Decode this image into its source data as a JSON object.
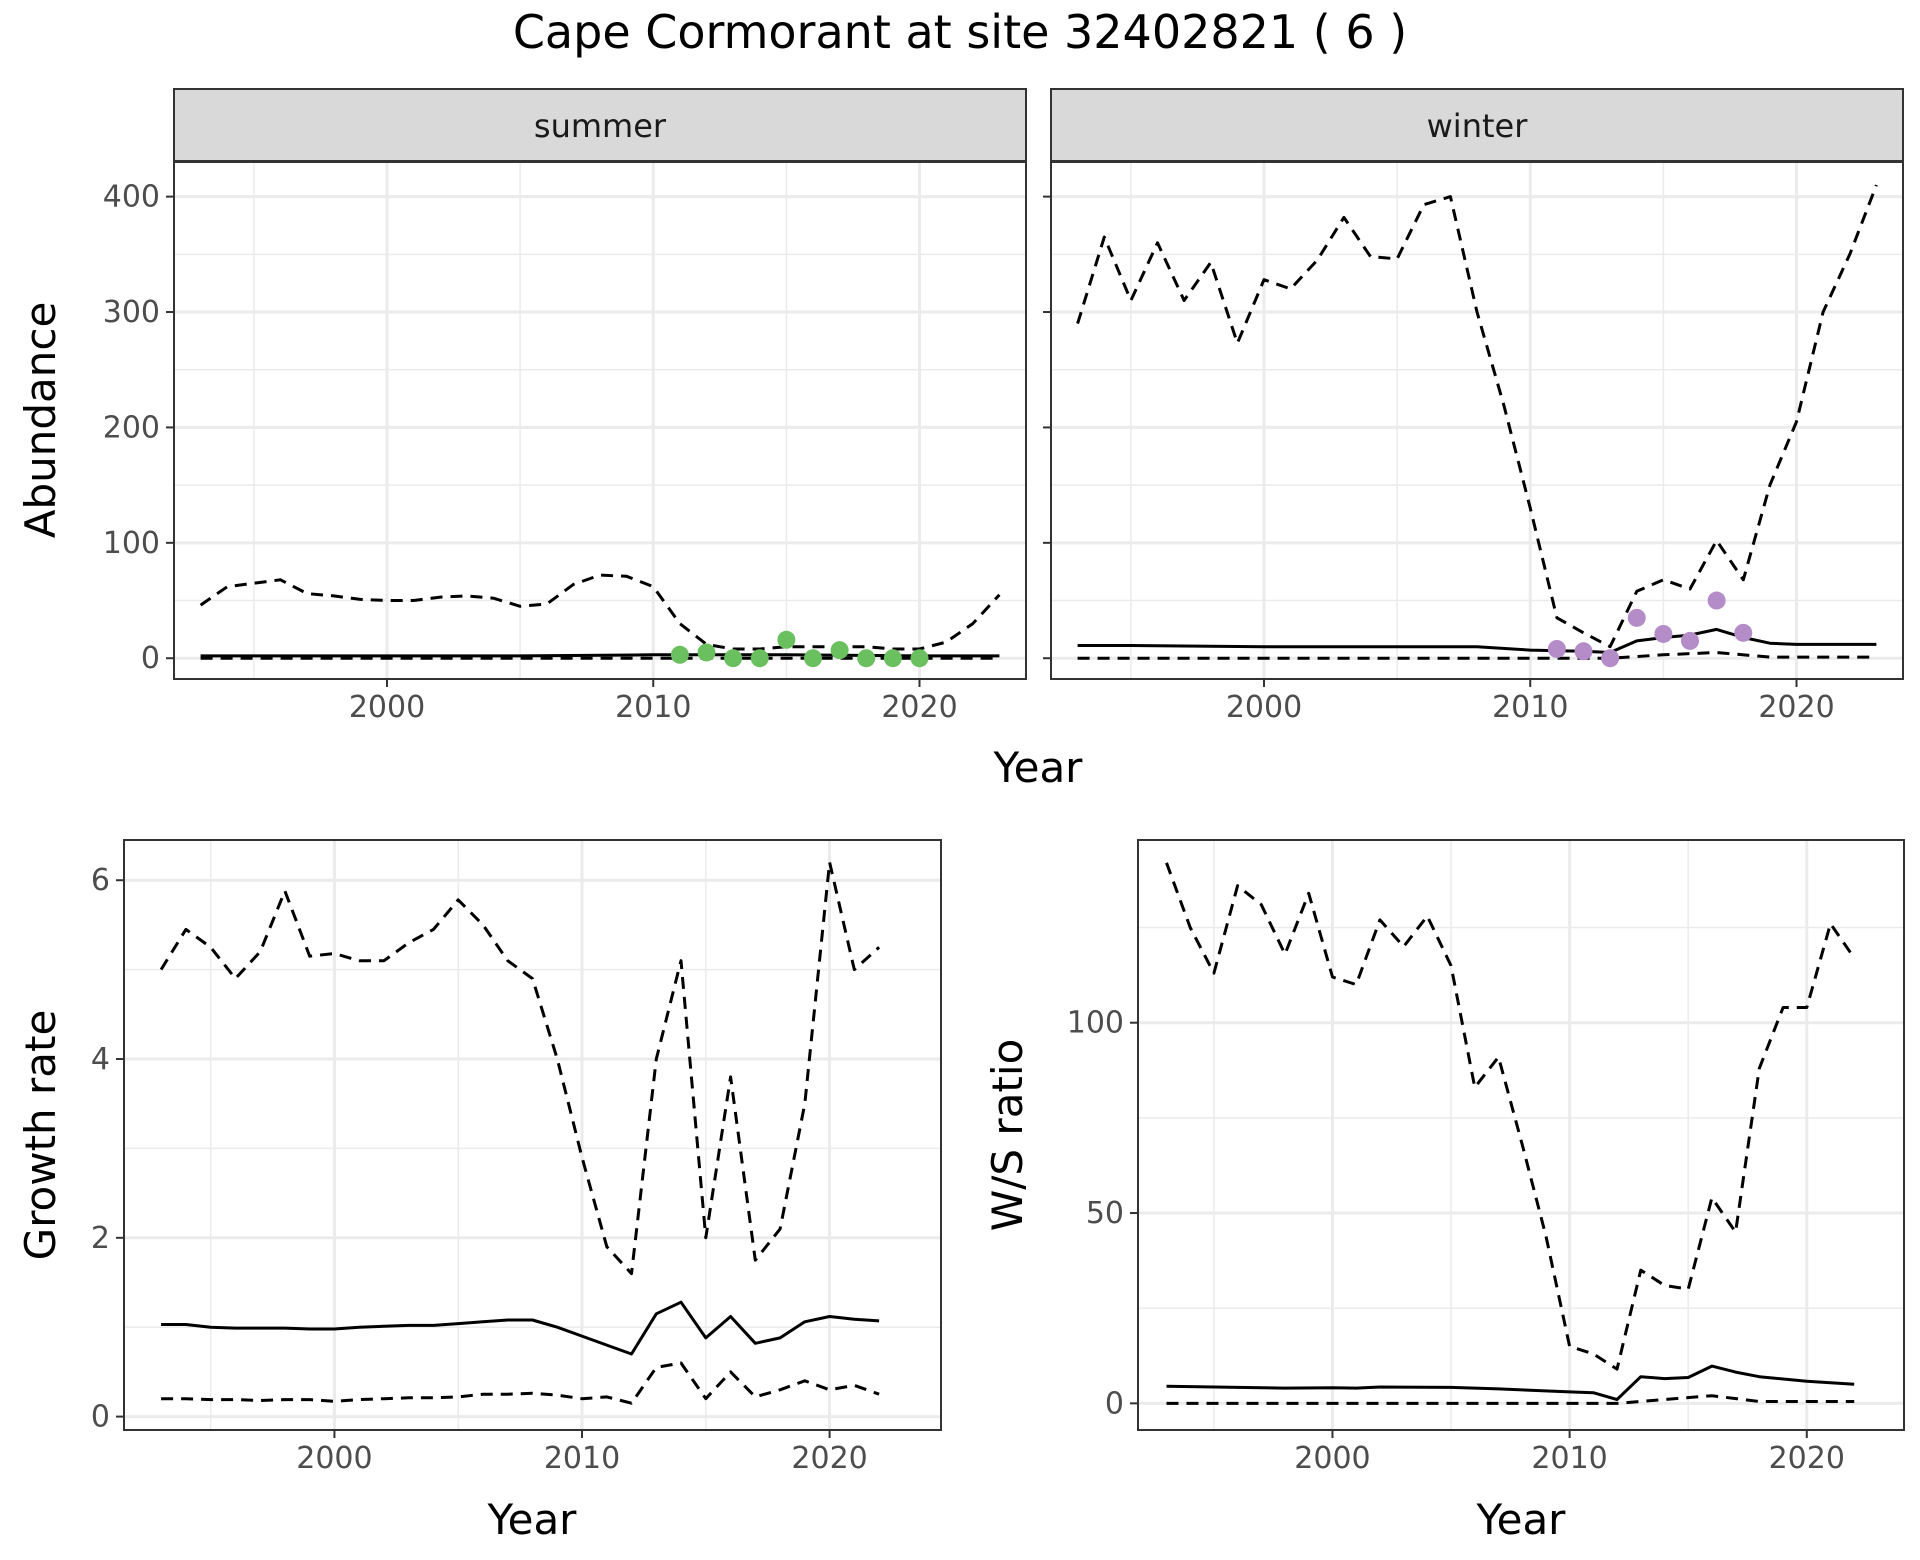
{
  "title": "Cape Cormorant at site 32402821 ( 6 )",
  "colors": {
    "summer_points": "#6abf5e",
    "winter_points": "#b48cc8",
    "grid": "#ebebeb",
    "strip_bg": "#d9d9d9",
    "lines": "#000000"
  },
  "chart_data": [
    {
      "type": "line",
      "panel": "summer",
      "strip_label": "summer",
      "xlabel": "Year",
      "ylabel": "Abundance",
      "xlim": [
        1992,
        2024
      ],
      "ylim": [
        -18,
        430
      ],
      "x_ticks": [
        2000,
        2010,
        2020
      ],
      "y_ticks": [
        0,
        100,
        200,
        300,
        400
      ],
      "x_tick_labels": [
        "2000",
        "2010",
        "2020"
      ],
      "y_tick_labels": [
        "0",
        "100",
        "200",
        "300",
        "400"
      ],
      "grid": true,
      "series": [
        {
          "style": "solid",
          "x": [
            1993,
            1995,
            2000,
            2005,
            2010,
            2015,
            2020,
            2023
          ],
          "y": [
            2,
            2,
            2,
            2,
            3,
            3,
            2,
            2
          ]
        },
        {
          "style": "dashed",
          "x": [
            1993,
            1994,
            1995,
            1996,
            1997,
            1998,
            1999,
            2000,
            2001,
            2002,
            2003,
            2004,
            2005,
            2006,
            2007,
            2008,
            2009,
            2010,
            2011,
            2012,
            2013,
            2014,
            2015,
            2016,
            2017,
            2018,
            2019,
            2020,
            2021,
            2022,
            2023
          ],
          "y": [
            46,
            62,
            65,
            68,
            56,
            54,
            51,
            50,
            50,
            53,
            54,
            52,
            45,
            47,
            64,
            72,
            71,
            62,
            30,
            12,
            8,
            8,
            10,
            10,
            10,
            10,
            8,
            8,
            14,
            30,
            55
          ]
        },
        {
          "style": "dashed",
          "x": [
            1993,
            2000,
            2010,
            2020,
            2023
          ],
          "y": [
            0,
            0,
            0,
            0,
            0
          ]
        }
      ],
      "points": {
        "x": [
          2011,
          2012,
          2013,
          2014,
          2015,
          2016,
          2017,
          2018,
          2019,
          2020
        ],
        "y": [
          3,
          5,
          0,
          0,
          16,
          0,
          7,
          0,
          0,
          0
        ]
      }
    },
    {
      "type": "line",
      "panel": "winter",
      "strip_label": "winter",
      "xlabel": "Year",
      "ylabel": "Abundance",
      "xlim": [
        1992,
        2024
      ],
      "ylim": [
        -18,
        430
      ],
      "x_ticks": [
        2000,
        2010,
        2020
      ],
      "y_ticks": [
        0,
        100,
        200,
        300,
        400
      ],
      "x_tick_labels": [
        "2000",
        "2010",
        "2020"
      ],
      "y_tick_labels": [],
      "grid": true,
      "series": [
        {
          "style": "solid",
          "x": [
            1993,
            1995,
            2000,
            2002,
            2005,
            2008,
            2010,
            2012,
            2013,
            2014,
            2015,
            2016,
            2017,
            2018,
            2019,
            2020,
            2022,
            2023
          ],
          "y": [
            11,
            11,
            10,
            10,
            10,
            10,
            7,
            6,
            5,
            15,
            18,
            20,
            25,
            18,
            13,
            12,
            12,
            12
          ]
        },
        {
          "style": "dashed",
          "x": [
            1993,
            1994,
            1995,
            1996,
            1997,
            1998,
            1999,
            2000,
            2001,
            2002,
            2003,
            2004,
            2005,
            2006,
            2007,
            2008,
            2009,
            2010,
            2011,
            2012,
            2013,
            2014,
            2015,
            2016,
            2017,
            2018,
            2019,
            2020,
            2021,
            2022,
            2023
          ],
          "y": [
            290,
            365,
            310,
            360,
            310,
            343,
            273,
            328,
            320,
            345,
            382,
            348,
            346,
            393,
            400,
            300,
            220,
            130,
            35,
            22,
            10,
            58,
            68,
            60,
            102,
            68,
            150,
            205,
            300,
            350,
            410
          ]
        },
        {
          "style": "dashed",
          "x": [
            1993,
            2000,
            2010,
            2013,
            2015,
            2017,
            2019,
            2023
          ],
          "y": [
            0,
            0,
            0,
            0,
            3,
            5,
            1,
            1
          ]
        }
      ],
      "points": {
        "x": [
          2011,
          2012,
          2013,
          2014,
          2015,
          2016,
          2017,
          2018
        ],
        "y": [
          8,
          6,
          0,
          35,
          21,
          15,
          50,
          22
        ]
      }
    },
    {
      "type": "line",
      "panel": "growth",
      "xlabel": "Year",
      "ylabel": "Growth rate",
      "xlim": [
        1991.5,
        2024.5
      ],
      "ylim": [
        -0.15,
        6.45
      ],
      "x_ticks": [
        2000,
        2010,
        2020
      ],
      "y_ticks": [
        0,
        2,
        4,
        6
      ],
      "x_tick_labels": [
        "2000",
        "2010",
        "2020"
      ],
      "y_tick_labels": [
        "0",
        "2",
        "4",
        "6"
      ],
      "grid": true,
      "series": [
        {
          "style": "solid",
          "x": [
            1993,
            1994,
            1995,
            1996,
            1997,
            1998,
            1999,
            2000,
            2001,
            2002,
            2003,
            2004,
            2005,
            2006,
            2007,
            2008,
            2009,
            2010,
            2011,
            2012,
            2013,
            2014,
            2015,
            2016,
            2017,
            2018,
            2019,
            2020,
            2021,
            2022
          ],
          "y": [
            1.03,
            1.03,
            1.0,
            0.99,
            0.99,
            0.99,
            0.98,
            0.98,
            1.0,
            1.01,
            1.02,
            1.02,
            1.04,
            1.06,
            1.08,
            1.08,
            1.0,
            0.9,
            0.8,
            0.7,
            1.15,
            1.28,
            0.88,
            1.12,
            0.82,
            0.88,
            1.06,
            1.12,
            1.09,
            1.07
          ]
        },
        {
          "style": "dashed",
          "x": [
            1993,
            1994,
            1995,
            1996,
            1997,
            1998,
            1999,
            2000,
            2001,
            2002,
            2003,
            2004,
            2005,
            2006,
            2007,
            2008,
            2009,
            2010,
            2011,
            2012,
            2013,
            2014,
            2015,
            2016,
            2017,
            2018,
            2019,
            2020,
            2021,
            2022
          ],
          "y": [
            5.0,
            5.45,
            5.25,
            4.9,
            5.2,
            5.88,
            5.15,
            5.18,
            5.1,
            5.1,
            5.3,
            5.45,
            5.78,
            5.5,
            5.1,
            4.9,
            4.0,
            2.9,
            1.9,
            1.6,
            4.0,
            5.1,
            2.0,
            3.8,
            1.75,
            2.1,
            3.5,
            6.2,
            5.0,
            5.25
          ]
        },
        {
          "style": "dashed",
          "x": [
            1993,
            1994,
            1995,
            1996,
            1997,
            1998,
            1999,
            2000,
            2001,
            2002,
            2003,
            2004,
            2005,
            2006,
            2007,
            2008,
            2009,
            2010,
            2011,
            2012,
            2013,
            2014,
            2015,
            2016,
            2017,
            2018,
            2019,
            2020,
            2021,
            2022
          ],
          "y": [
            0.2,
            0.2,
            0.19,
            0.19,
            0.18,
            0.19,
            0.19,
            0.17,
            0.19,
            0.2,
            0.21,
            0.21,
            0.22,
            0.25,
            0.25,
            0.26,
            0.24,
            0.2,
            0.22,
            0.15,
            0.55,
            0.6,
            0.2,
            0.5,
            0.22,
            0.3,
            0.4,
            0.3,
            0.35,
            0.25
          ]
        }
      ]
    },
    {
      "type": "line",
      "panel": "ws_ratio",
      "xlabel": "Year",
      "ylabel": "W/S ratio",
      "xlim": [
        1991.8,
        2024.1
      ],
      "ylim": [
        -7,
        148
      ],
      "x_ticks": [
        2000,
        2010,
        2020
      ],
      "y_ticks": [
        0,
        50,
        100
      ],
      "x_tick_labels": [
        "2000",
        "2010",
        "2020"
      ],
      "y_tick_labels": [
        "0",
        "50",
        "100"
      ],
      "grid": true,
      "series": [
        {
          "style": "solid",
          "x": [
            1993,
            1995,
            1998,
            2000,
            2001,
            2002,
            2005,
            2007,
            2010,
            2011,
            2012,
            2013,
            2014,
            2015,
            2016,
            2017,
            2018,
            2020,
            2022
          ],
          "y": [
            4.5,
            4.3,
            4.0,
            4.1,
            4.0,
            4.3,
            4.2,
            3.8,
            3.0,
            2.8,
            1.0,
            7.0,
            6.5,
            6.8,
            9.8,
            8.2,
            7.0,
            5.8,
            5.0
          ]
        },
        {
          "style": "dashed",
          "x": [
            1993,
            1994,
            1995,
            1996,
            1997,
            1998,
            1999,
            2000,
            2001,
            2002,
            2003,
            2004,
            2005,
            2006,
            2007,
            2008,
            2009,
            2010,
            2011,
            2012,
            2013,
            2014,
            2015,
            2016,
            2017,
            2018,
            2019,
            2020,
            2021,
            2022
          ],
          "y": [
            142,
            125,
            113,
            136,
            131,
            118,
            134,
            112,
            110,
            127,
            120,
            128,
            115,
            83,
            91,
            68,
            44,
            15,
            13,
            9,
            35,
            31,
            30,
            54,
            45,
            88,
            104,
            104,
            126,
            117
          ]
        },
        {
          "style": "dashed",
          "x": [
            1993,
            2000,
            2010,
            2012,
            2014,
            2016,
            2018,
            2022
          ],
          "y": [
            0,
            0,
            0,
            0,
            1,
            2,
            0.5,
            0.5
          ]
        }
      ]
    }
  ]
}
